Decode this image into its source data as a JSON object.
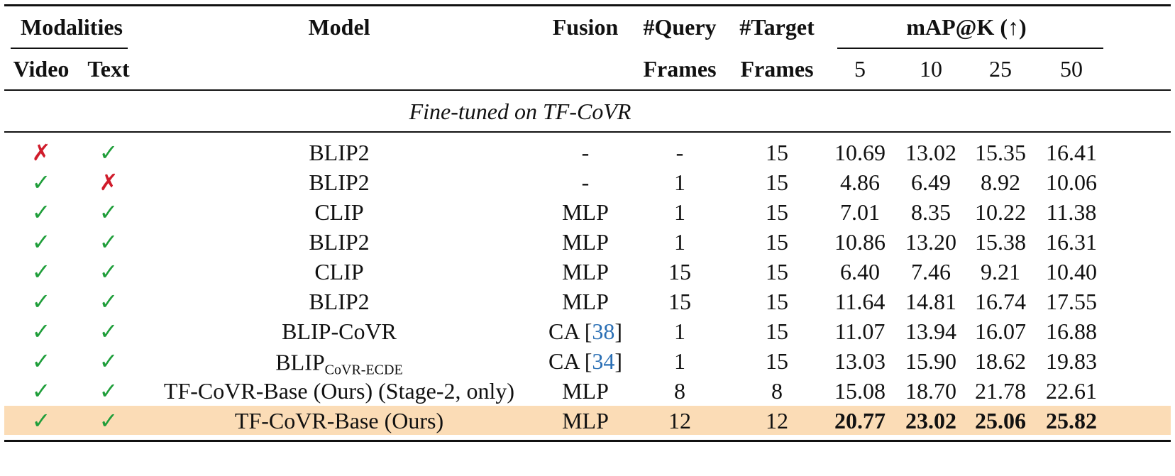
{
  "marks": {
    "yes": {
      "symbol": "✓",
      "color": "#1f9e3a"
    },
    "no": {
      "symbol": "✗",
      "color": "#d01c2b"
    }
  },
  "header": {
    "modalities": "Modalities",
    "video": "Video",
    "text": "Text",
    "model": "Model",
    "fusion": "Fusion",
    "query": [
      "#Query",
      "Frames"
    ],
    "target": [
      "#Target",
      "Frames"
    ],
    "map": "mAP@K (↑)",
    "k": [
      "5",
      "10",
      "25",
      "50"
    ]
  },
  "section": "Fine-tuned on TF-CoVR",
  "rows": [
    {
      "video": "no",
      "text": "yes",
      "model": "BLIP2",
      "fusion": "-",
      "query": "-",
      "target": "15",
      "map": [
        "10.69",
        "13.02",
        "15.35",
        "16.41"
      ]
    },
    {
      "video": "yes",
      "text": "no",
      "model": "BLIP2",
      "fusion": "-",
      "query": "1",
      "target": "15",
      "map": [
        "4.86",
        "6.49",
        "8.92",
        "10.06"
      ]
    },
    {
      "video": "yes",
      "text": "yes",
      "model": "CLIP",
      "fusion": "MLP",
      "query": "1",
      "target": "15",
      "map": [
        "7.01",
        "8.35",
        "10.22",
        "11.38"
      ]
    },
    {
      "video": "yes",
      "text": "yes",
      "model": "BLIP2",
      "fusion": "MLP",
      "query": "1",
      "target": "15",
      "map": [
        "10.86",
        "13.20",
        "15.38",
        "16.31"
      ]
    },
    {
      "video": "yes",
      "text": "yes",
      "model": "CLIP",
      "fusion": "MLP",
      "query": "15",
      "target": "15",
      "map": [
        "6.40",
        "7.46",
        "9.21",
        "10.40"
      ]
    },
    {
      "video": "yes",
      "text": "yes",
      "model": "BLIP2",
      "fusion": "MLP",
      "query": "15",
      "target": "15",
      "map": [
        "11.64",
        "14.81",
        "16.74",
        "17.55"
      ]
    },
    {
      "video": "yes",
      "text": "yes",
      "model": "BLIP-CoVR",
      "fusion": [
        {
          "t": "CA ["
        },
        {
          "t": "38",
          "ref": true
        },
        {
          "t": "]"
        }
      ],
      "query": "1",
      "target": "15",
      "map": [
        "11.07",
        "13.94",
        "16.07",
        "16.88"
      ]
    },
    {
      "video": "yes",
      "text": "yes",
      "model": {
        "base": "BLIP",
        "sub": "CoVR-ECDE"
      },
      "fusion": [
        {
          "t": "CA ["
        },
        {
          "t": "34",
          "ref": true
        },
        {
          "t": "]"
        }
      ],
      "query": "1",
      "target": "15",
      "map": [
        "13.03",
        "15.90",
        "18.62",
        "19.83"
      ]
    },
    {
      "video": "yes",
      "text": "yes",
      "model": "TF-CoVR-Base (Ours) (Stage-2, only)",
      "fusion": "MLP",
      "query": "8",
      "target": "8",
      "map": [
        "15.08",
        "18.70",
        "21.78",
        "22.61"
      ]
    },
    {
      "video": "yes",
      "text": "yes",
      "model": "TF-CoVR-Base (Ours)",
      "fusion": "MLP",
      "query": "12",
      "target": "12",
      "map": [
        "20.77",
        "23.02",
        "25.06",
        "25.82"
      ],
      "highlight": "#fbdcb6",
      "bold_map": true
    }
  ]
}
